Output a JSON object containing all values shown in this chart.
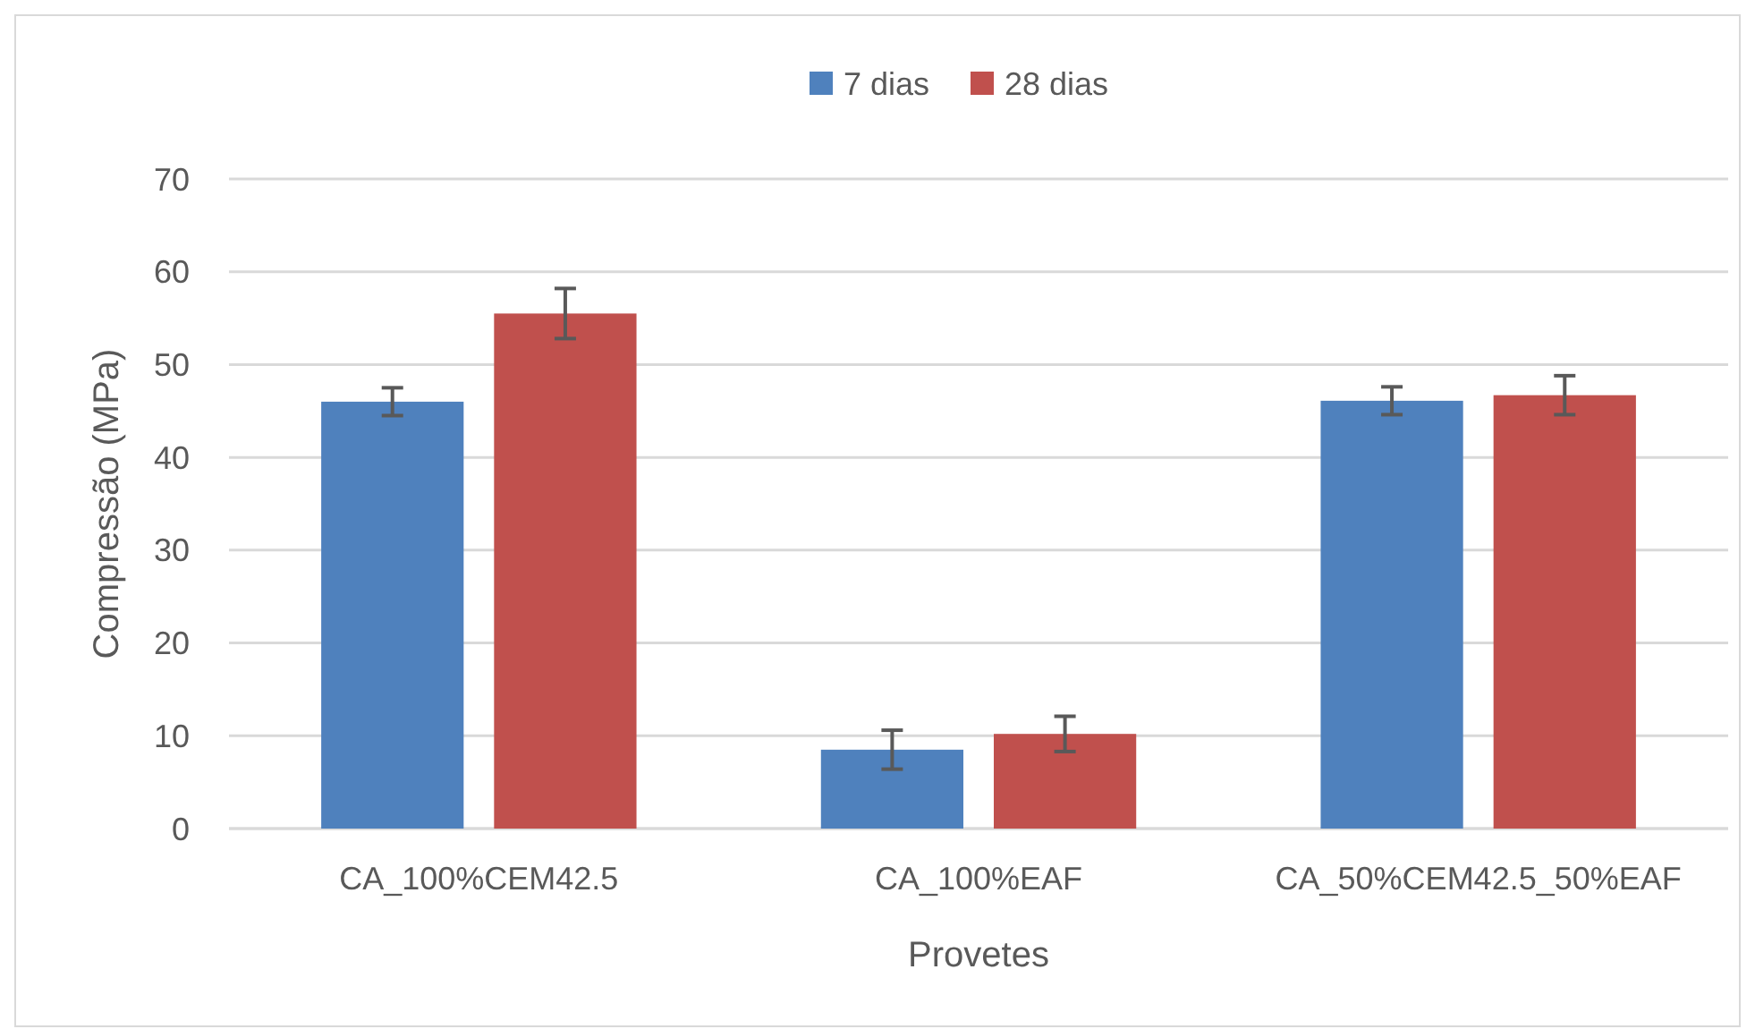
{
  "chart_data": {
    "type": "bar",
    "xlabel": "Provetes",
    "ylabel": "Compressão (MPa)",
    "categories": [
      "CA_100%CEM42.5",
      "CA_100%EAF",
      "CA_50%CEM42.5_50%EAF"
    ],
    "series": [
      {
        "name": "7 dias",
        "color": "#4f81bd",
        "values": [
          46.0,
          8.5,
          46.1
        ],
        "errors": [
          1.5,
          2.1,
          1.5
        ]
      },
      {
        "name": "28 dias",
        "color": "#c0504d",
        "values": [
          55.5,
          10.2,
          46.7
        ],
        "errors": [
          2.7,
          1.9,
          2.1
        ]
      }
    ],
    "ylim": [
      0,
      70
    ],
    "yticks": [
      0,
      10,
      20,
      30,
      40,
      50,
      60,
      70
    ],
    "grid": "y",
    "legend": "top"
  }
}
